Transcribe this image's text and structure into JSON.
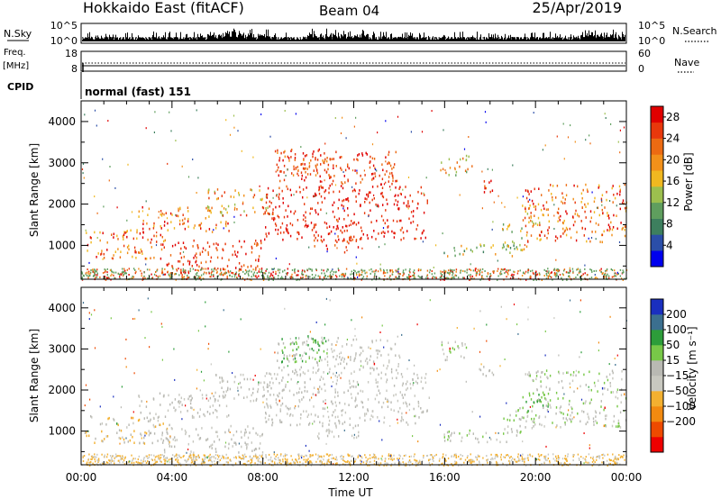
{
  "header": {
    "site": "Hokkaido East (fitACF)",
    "beam": "Beam 04",
    "date": "25/Apr/2019"
  },
  "labels": {
    "nsky": "N.Sky",
    "nsearch": "N.Search",
    "freq_top": "Freq.",
    "freq_unit": "[MHz]",
    "nave": "Nave",
    "cpid": "CPID",
    "cpid_value": "normal (fast) 151",
    "x_axis": "Time UT",
    "y_axis": "Slant Range [km]"
  },
  "colors": {
    "power": [
      "#0000ee",
      "#2b4ea8",
      "#3d7f5e",
      "#5f9e5e",
      "#9cbf4e",
      "#f0b820",
      "#f2901a",
      "#ec6a12",
      "#e8380c",
      "#e00000"
    ],
    "velocity": [
      "#ee0000",
      "#ee4a00",
      "#f28a10",
      "#f3b030",
      "#c8c8c0",
      "#b9b9b3",
      "#78c848",
      "#2d9d3a",
      "#3b6f8f",
      "#1a2fbf"
    ],
    "noise_line": "#000000"
  },
  "chart_data": [
    {
      "type": "line",
      "name": "noise-panel",
      "left_ticks": [
        "10^5",
        "10^0"
      ],
      "right_ticks": [
        "10^5",
        "10^0"
      ],
      "x": [
        "00:00",
        "24:00"
      ]
    },
    {
      "type": "line",
      "name": "freq-nave-panel",
      "left_ticks": [
        "18",
        "8"
      ],
      "right_ticks": [
        "60",
        "0"
      ],
      "freq_mhz": 10.5,
      "nave": 22
    },
    {
      "type": "heatmap",
      "name": "power",
      "x_range_hours": [
        0,
        24
      ],
      "x_ticks": [
        "00:00",
        "04:00",
        "08:00",
        "12:00",
        "16:00",
        "20:00",
        "00:00"
      ],
      "y_range_km": [
        180,
        4500
      ],
      "y_ticks": [
        "1000",
        "2000",
        "3000",
        "4000"
      ],
      "colorbar_label": "Power [dB]",
      "colorbar_ticks": [
        "4",
        "8",
        "12",
        "16",
        "20",
        "24",
        "28"
      ],
      "colorbar_range": [
        0,
        30
      ]
    },
    {
      "type": "heatmap",
      "name": "velocity",
      "x_range_hours": [
        0,
        24
      ],
      "x_ticks": [
        "00:00",
        "04:00",
        "08:00",
        "12:00",
        "16:00",
        "20:00",
        "00:00"
      ],
      "y_range_km": [
        180,
        4500
      ],
      "y_ticks": [
        "1000",
        "2000",
        "3000",
        "4000"
      ],
      "colorbar_label": "Velocity [m s⁻¹]",
      "colorbar_ticks": [
        "200",
        "100",
        "50",
        "15",
        "−15",
        "−50",
        "−100",
        "−200"
      ],
      "colorbar_range": [
        -250,
        250
      ]
    }
  ]
}
